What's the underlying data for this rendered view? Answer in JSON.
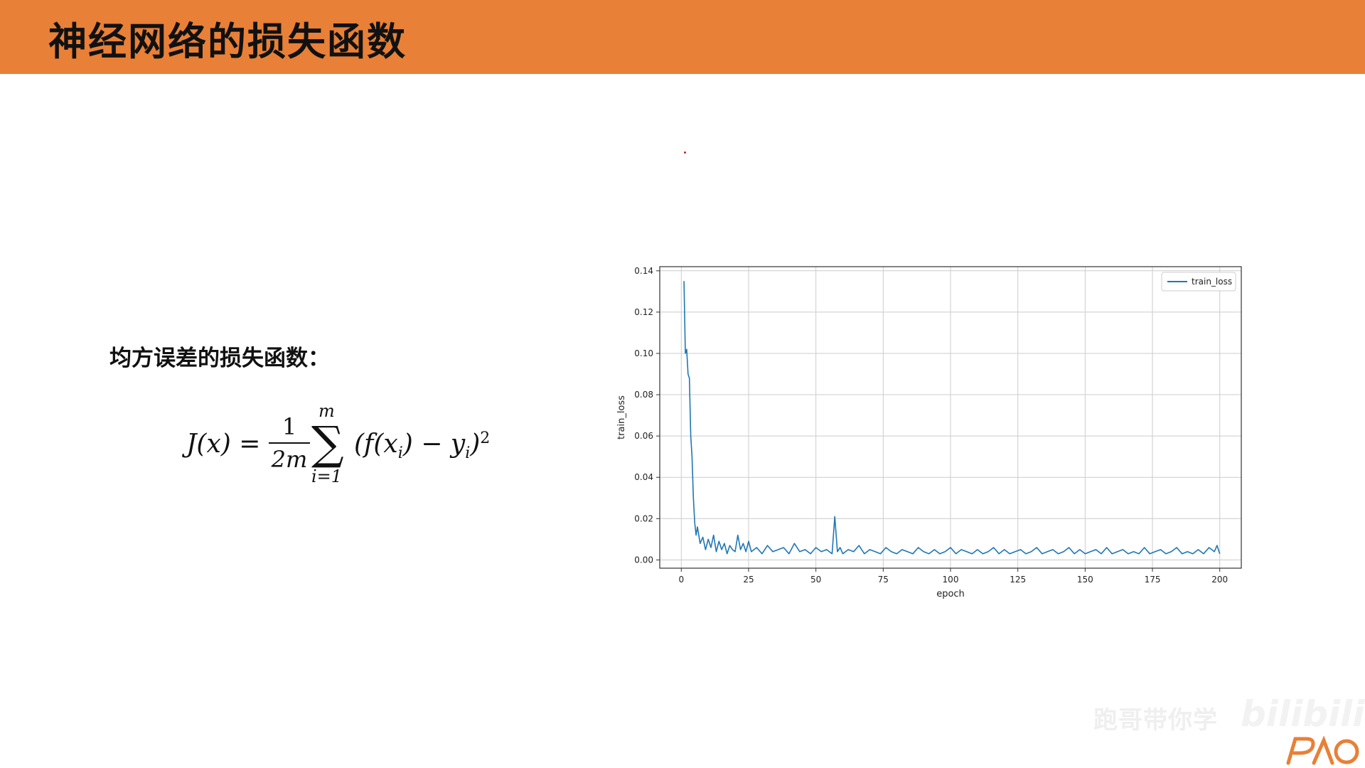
{
  "slide": {
    "title": "神经网络的损失函数",
    "subtitle": "均方误差的损失函数：",
    "formula": {
      "lhs": "J(x) =",
      "frac_num": "1",
      "frac_den": "2m",
      "sum_upper": "m",
      "sum_lower": "i=1",
      "rhs_open": "(f(x",
      "rhs_sub1": "i",
      "rhs_mid": ") − y",
      "rhs_sub2": "i",
      "rhs_close": ")",
      "rhs_sup": "2"
    },
    "watermark": "跑哥带你学",
    "bili_logo_text": "bilibili",
    "logo_text": "PAO"
  },
  "colors": {
    "title_bar": "#e88037",
    "series_line": "#1f77b4",
    "grid": "#cccccc"
  },
  "chart_data": {
    "type": "line",
    "xlabel": "epoch",
    "ylabel": "train_loss",
    "xlim": [
      -8,
      208
    ],
    "ylim": [
      -0.004,
      0.142
    ],
    "x_ticks": [
      0,
      25,
      50,
      75,
      100,
      125,
      150,
      175,
      200
    ],
    "y_ticks": [
      0.0,
      0.02,
      0.04,
      0.06,
      0.08,
      0.1,
      0.12,
      0.14
    ],
    "y_tick_labels": [
      "0.00",
      "0.02",
      "0.04",
      "0.06",
      "0.08",
      "0.10",
      "0.12",
      "0.14"
    ],
    "grid": true,
    "legend": {
      "placement": "top-right",
      "entries": [
        "train_loss"
      ]
    },
    "series": [
      {
        "name": "train_loss",
        "x": [
          1,
          1.5,
          2,
          2.5,
          3,
          3.5,
          4,
          4.5,
          5,
          5.5,
          6,
          7,
          8,
          9,
          10,
          11,
          12,
          13,
          14,
          15,
          16,
          17,
          18,
          19,
          20,
          21,
          22,
          23,
          24,
          25,
          26,
          28,
          30,
          32,
          34,
          36,
          38,
          40,
          42,
          44,
          46,
          48,
          50,
          52,
          54,
          56,
          57,
          58,
          59,
          60,
          62,
          64,
          66,
          68,
          70,
          72,
          74,
          76,
          78,
          80,
          82,
          84,
          86,
          88,
          90,
          92,
          94,
          96,
          98,
          100,
          102,
          104,
          106,
          108,
          110,
          112,
          114,
          116,
          118,
          120,
          122,
          124,
          126,
          128,
          130,
          132,
          134,
          136,
          138,
          140,
          142,
          144,
          146,
          148,
          150,
          152,
          154,
          156,
          158,
          160,
          162,
          164,
          166,
          168,
          170,
          172,
          174,
          176,
          178,
          180,
          182,
          184,
          186,
          188,
          190,
          192,
          194,
          196,
          198,
          199,
          200
        ],
        "values": [
          0.135,
          0.1,
          0.102,
          0.09,
          0.088,
          0.06,
          0.05,
          0.03,
          0.018,
          0.012,
          0.016,
          0.008,
          0.011,
          0.005,
          0.01,
          0.006,
          0.012,
          0.004,
          0.009,
          0.005,
          0.008,
          0.003,
          0.007,
          0.005,
          0.004,
          0.012,
          0.005,
          0.008,
          0.004,
          0.009,
          0.004,
          0.006,
          0.003,
          0.007,
          0.004,
          0.005,
          0.006,
          0.003,
          0.008,
          0.004,
          0.005,
          0.003,
          0.006,
          0.004,
          0.005,
          0.003,
          0.021,
          0.004,
          0.006,
          0.003,
          0.005,
          0.004,
          0.007,
          0.003,
          0.005,
          0.004,
          0.003,
          0.006,
          0.004,
          0.003,
          0.005,
          0.004,
          0.003,
          0.006,
          0.004,
          0.003,
          0.005,
          0.003,
          0.004,
          0.006,
          0.003,
          0.005,
          0.004,
          0.003,
          0.005,
          0.003,
          0.004,
          0.006,
          0.003,
          0.005,
          0.003,
          0.004,
          0.005,
          0.003,
          0.004,
          0.006,
          0.003,
          0.004,
          0.005,
          0.003,
          0.004,
          0.006,
          0.003,
          0.005,
          0.003,
          0.004,
          0.005,
          0.003,
          0.006,
          0.003,
          0.004,
          0.005,
          0.003,
          0.004,
          0.003,
          0.006,
          0.003,
          0.004,
          0.005,
          0.003,
          0.004,
          0.006,
          0.003,
          0.004,
          0.003,
          0.005,
          0.003,
          0.006,
          0.004,
          0.007,
          0.003
        ]
      }
    ]
  }
}
